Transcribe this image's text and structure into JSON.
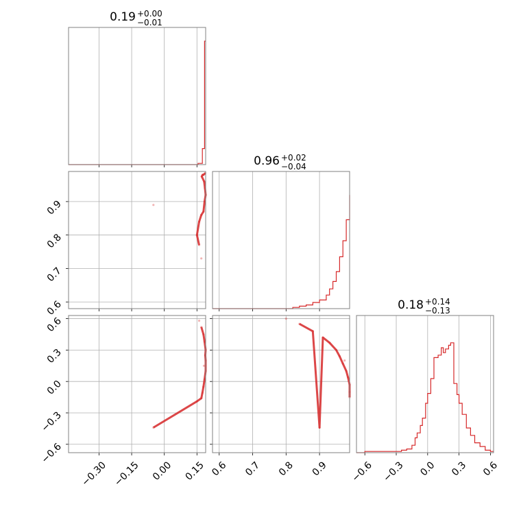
{
  "colors": {
    "series": "#d62728",
    "grid": "#b0b0b0",
    "frame": "#808080"
  },
  "chart_data": [
    {
      "type": "histogram",
      "panel": "p11",
      "title": {
        "value": "0.19",
        "plus": "+0.00",
        "minus": "−0.01"
      },
      "xlim": [
        -0.44,
        0.19
      ],
      "grid": true,
      "bins": [
        [
          0.145,
          0.0
        ],
        [
          0.155,
          0.01
        ],
        [
          0.165,
          0.01
        ],
        [
          0.175,
          0.13
        ],
        [
          0.185,
          1.0
        ],
        [
          0.19,
          1.0
        ]
      ]
    },
    {
      "type": "scatter",
      "panel": "p21",
      "xlim": [
        -0.44,
        0.19
      ],
      "ylim": [
        0.58,
        0.99
      ],
      "grid": true,
      "points": [
        [
          -0.05,
          0.89
        ],
        [
          0.15,
          0.8
        ],
        [
          0.16,
          0.84
        ],
        [
          0.17,
          0.86
        ],
        [
          0.18,
          0.87
        ],
        [
          0.185,
          0.9
        ],
        [
          0.19,
          0.92
        ],
        [
          0.187,
          0.94
        ],
        [
          0.183,
          0.96
        ],
        [
          0.18,
          0.98
        ],
        [
          0.176,
          0.98
        ],
        [
          0.172,
          0.975
        ],
        [
          0.188,
          0.985
        ],
        [
          0.16,
          0.77
        ],
        [
          0.17,
          0.73
        ]
      ]
    },
    {
      "type": "histogram",
      "panel": "p22",
      "title": {
        "value": "0.96",
        "plus": "+0.02",
        "minus": "−0.04"
      },
      "xlim": [
        0.58,
        0.99
      ],
      "grid": true,
      "bins": [
        [
          0.8,
          0.0
        ],
        [
          0.82,
          0.01
        ],
        [
          0.84,
          0.02
        ],
        [
          0.86,
          0.03
        ],
        [
          0.88,
          0.05
        ],
        [
          0.9,
          0.07
        ],
        [
          0.92,
          0.11
        ],
        [
          0.93,
          0.16
        ],
        [
          0.94,
          0.22
        ],
        [
          0.95,
          0.3
        ],
        [
          0.96,
          0.42
        ],
        [
          0.97,
          0.55
        ],
        [
          0.98,
          0.72
        ],
        [
          0.99,
          0.92
        ]
      ]
    },
    {
      "type": "scatter",
      "panel": "p31",
      "xlim": [
        -0.44,
        0.19
      ],
      "ylim": [
        -0.68,
        0.63
      ],
      "grid": true,
      "points": [
        [
          0.16,
          0.58
        ],
        [
          0.17,
          0.52
        ],
        [
          0.18,
          0.45
        ],
        [
          0.185,
          0.38
        ],
        [
          0.19,
          0.3
        ],
        [
          0.19,
          0.2
        ],
        [
          0.19,
          0.1
        ],
        [
          0.185,
          0.02
        ],
        [
          0.18,
          -0.05
        ],
        [
          0.175,
          -0.11
        ],
        [
          0.17,
          -0.16
        ],
        [
          0.15,
          -0.19
        ],
        [
          -0.05,
          -0.44
        ],
        [
          0.188,
          0.25
        ],
        [
          0.182,
          0.15
        ]
      ]
    },
    {
      "type": "scatter",
      "panel": "p32",
      "xlim": [
        0.58,
        0.99
      ],
      "ylim": [
        -0.68,
        0.63
      ],
      "grid": true,
      "points": [
        [
          0.8,
          0.6
        ],
        [
          0.84,
          0.55
        ],
        [
          0.88,
          0.48
        ],
        [
          0.91,
          0.42
        ],
        [
          0.93,
          0.37
        ],
        [
          0.95,
          0.3
        ],
        [
          0.96,
          0.24
        ],
        [
          0.97,
          0.17
        ],
        [
          0.98,
          0.1
        ],
        [
          0.985,
          0.04
        ],
        [
          0.99,
          -0.03
        ],
        [
          0.99,
          -0.1
        ],
        [
          0.99,
          -0.15
        ],
        [
          0.9,
          -0.44
        ],
        [
          0.975,
          0.2
        ]
      ]
    },
    {
      "type": "histogram",
      "panel": "p33",
      "title": {
        "value": "0.18",
        "plus": "+0.14",
        "minus": "−0.13"
      },
      "xlim": [
        -0.68,
        0.63
      ],
      "grid": true,
      "bins": [
        [
          -0.6,
          0.01
        ],
        [
          -0.55,
          0.01
        ],
        [
          -0.35,
          0.01
        ],
        [
          -0.25,
          0.02
        ],
        [
          -0.2,
          0.03
        ],
        [
          -0.15,
          0.06
        ],
        [
          -0.12,
          0.12
        ],
        [
          -0.1,
          0.16
        ],
        [
          -0.07,
          0.22
        ],
        [
          -0.05,
          0.28
        ],
        [
          -0.02,
          0.4
        ],
        [
          0.0,
          0.48
        ],
        [
          0.03,
          0.6
        ],
        [
          0.06,
          0.77
        ],
        [
          0.1,
          0.79
        ],
        [
          0.13,
          0.85
        ],
        [
          0.15,
          0.81
        ],
        [
          0.17,
          0.84
        ],
        [
          0.2,
          0.87
        ],
        [
          0.22,
          0.89
        ],
        [
          0.25,
          0.56
        ],
        [
          0.28,
          0.47
        ],
        [
          0.3,
          0.4
        ],
        [
          0.33,
          0.31
        ],
        [
          0.37,
          0.2
        ],
        [
          0.41,
          0.14
        ],
        [
          0.45,
          0.08
        ],
        [
          0.5,
          0.05
        ],
        [
          0.55,
          0.02
        ],
        [
          0.6,
          0.01
        ]
      ]
    }
  ],
  "axes": {
    "x1": {
      "ticks": [
        -0.3,
        -0.15,
        0.0,
        0.15
      ],
      "labels": [
        "−0.30",
        "−0.15",
        "0.00",
        "0.15"
      ]
    },
    "x2": {
      "ticks": [
        0.6,
        0.7,
        0.8,
        0.9
      ],
      "labels": [
        "0.6",
        "0.7",
        "0.8",
        "0.9"
      ]
    },
    "x3": {
      "ticks": [
        -0.6,
        -0.3,
        0.0,
        0.3,
        0.6
      ],
      "labels": [
        "−0.6",
        "−0.3",
        "0.0",
        "0.3",
        "0.6"
      ]
    },
    "y2": {
      "ticks": [
        0.6,
        0.7,
        0.8,
        0.9
      ],
      "labels": [
        "0.6",
        "0.7",
        "0.8",
        "0.9"
      ]
    },
    "y3": {
      "ticks": [
        -0.6,
        -0.3,
        0.0,
        0.3,
        0.6
      ],
      "labels": [
        "−0.6",
        "−0.3",
        "0.0",
        "0.3",
        "0.6"
      ]
    }
  }
}
